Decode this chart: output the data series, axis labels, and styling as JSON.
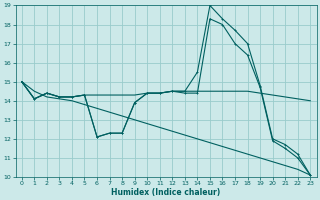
{
  "xlabel": "Humidex (Indice chaleur)",
  "xlim": [
    -0.5,
    23.5
  ],
  "ylim": [
    10,
    19
  ],
  "yticks": [
    10,
    11,
    12,
    13,
    14,
    15,
    16,
    17,
    18,
    19
  ],
  "xticks": [
    0,
    1,
    2,
    3,
    4,
    5,
    6,
    7,
    8,
    9,
    10,
    11,
    12,
    13,
    14,
    15,
    16,
    17,
    18,
    19,
    20,
    21,
    22,
    23
  ],
  "bg_color": "#cce9e9",
  "grid_color": "#99cccc",
  "line_color": "#006060",
  "line1_x": [
    0,
    1,
    2,
    3,
    4,
    5,
    6,
    7,
    8,
    9,
    10,
    11,
    12,
    13,
    14,
    15,
    16,
    17,
    18,
    19,
    20,
    21,
    22,
    23
  ],
  "line1_y": [
    15.0,
    14.1,
    14.4,
    14.2,
    14.2,
    14.3,
    12.1,
    12.3,
    12.3,
    13.9,
    14.4,
    14.4,
    14.5,
    14.5,
    15.5,
    19.0,
    18.3,
    17.7,
    17.0,
    14.8,
    12.0,
    11.7,
    11.2,
    10.1
  ],
  "line2_x": [
    0,
    1,
    2,
    3,
    4,
    5,
    6,
    7,
    8,
    9,
    10,
    11,
    12,
    13,
    14,
    15,
    16,
    17,
    18,
    19,
    20,
    21,
    22,
    23
  ],
  "line2_y": [
    15.0,
    14.1,
    14.4,
    14.2,
    14.2,
    14.3,
    12.1,
    12.3,
    12.3,
    13.9,
    14.4,
    14.4,
    14.5,
    14.4,
    14.4,
    18.3,
    18.0,
    17.0,
    16.4,
    14.7,
    11.9,
    11.5,
    11.0,
    10.1
  ],
  "line3_x": [
    0,
    1,
    2,
    3,
    4,
    5,
    6,
    7,
    8,
    9,
    10,
    11,
    12,
    13,
    14,
    15,
    16,
    17,
    18,
    19,
    20,
    21,
    22,
    23
  ],
  "line3_y": [
    15.0,
    14.1,
    14.4,
    14.2,
    14.2,
    14.3,
    14.3,
    14.3,
    14.3,
    14.3,
    14.4,
    14.4,
    14.5,
    14.5,
    14.5,
    14.5,
    14.5,
    14.5,
    14.5,
    14.4,
    14.3,
    14.2,
    14.1,
    14.0
  ],
  "line4_x": [
    0,
    1,
    2,
    3,
    4,
    5,
    6,
    7,
    8,
    9,
    10,
    11,
    12,
    13,
    14,
    15,
    16,
    17,
    18,
    19,
    20,
    21,
    22,
    23
  ],
  "line4_y": [
    15.0,
    14.5,
    14.2,
    14.1,
    14.0,
    13.8,
    13.6,
    13.4,
    13.2,
    13.0,
    12.8,
    12.6,
    12.4,
    12.2,
    12.0,
    11.8,
    11.6,
    11.4,
    11.2,
    11.0,
    10.8,
    10.6,
    10.4,
    10.1
  ]
}
